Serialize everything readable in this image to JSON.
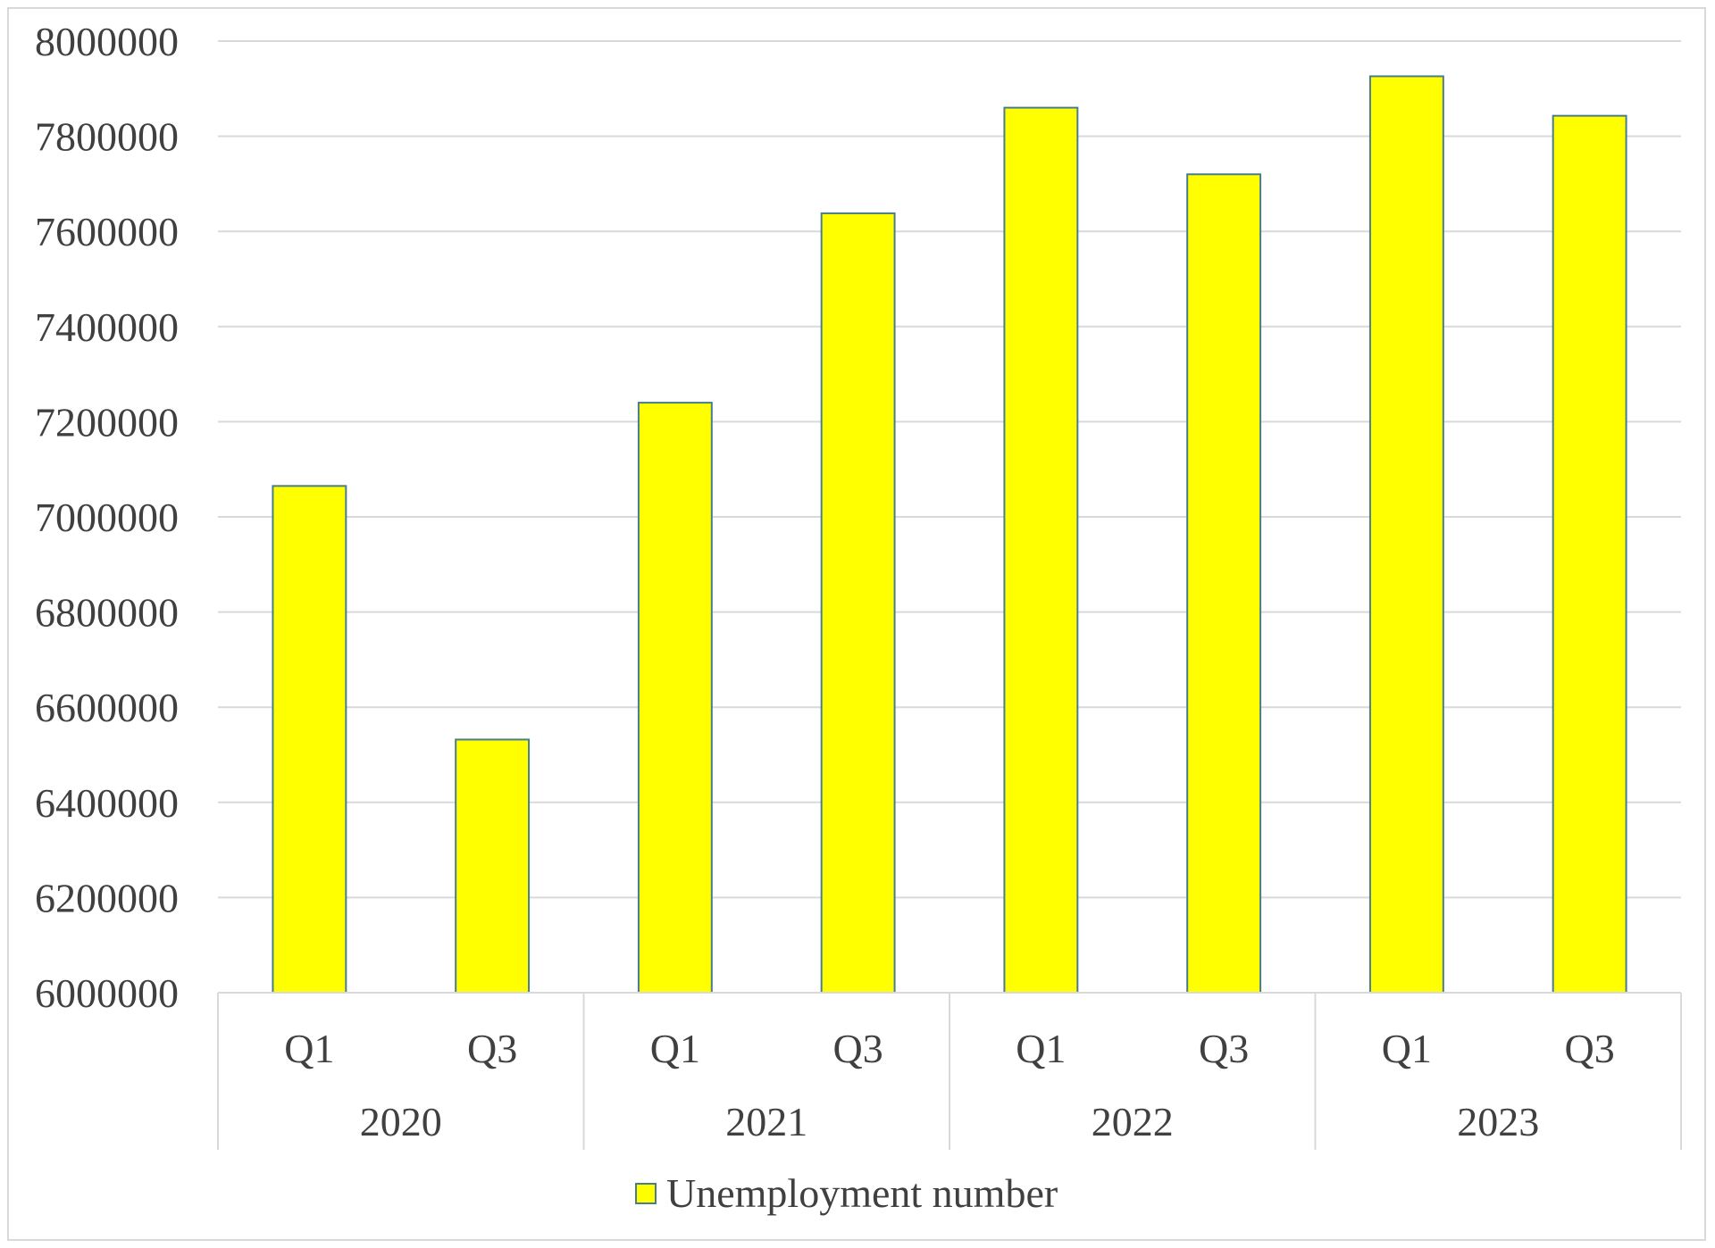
{
  "chart_data": {
    "type": "bar",
    "categories": [
      {
        "quarter": "Q1",
        "year": "2020"
      },
      {
        "quarter": "Q3",
        "year": "2020"
      },
      {
        "quarter": "Q1",
        "year": "2021"
      },
      {
        "quarter": "Q3",
        "year": "2021"
      },
      {
        "quarter": "Q1",
        "year": "2022"
      },
      {
        "quarter": "Q3",
        "year": "2022"
      },
      {
        "quarter": "Q1",
        "year": "2023"
      },
      {
        "quarter": "Q3",
        "year": "2023"
      }
    ],
    "years": [
      "2020",
      "2021",
      "2022",
      "2023"
    ],
    "series": [
      {
        "name": "Unemployment number",
        "color": "#ffff00",
        "border_color": "#4a7d8c",
        "values": [
          7065000,
          6532000,
          7240000,
          7638000,
          7860000,
          7720000,
          7926000,
          7843000
        ]
      }
    ],
    "ylim": [
      6000000,
      8000000
    ],
    "yticks": [
      "8000000",
      "7800000",
      "7600000",
      "7400000",
      "7200000",
      "7000000",
      "6800000",
      "6600000",
      "6400000",
      "6200000",
      "6000000"
    ],
    "grid": true,
    "legend_position": "bottom",
    "title": "",
    "xlabel": "",
    "ylabel": ""
  }
}
